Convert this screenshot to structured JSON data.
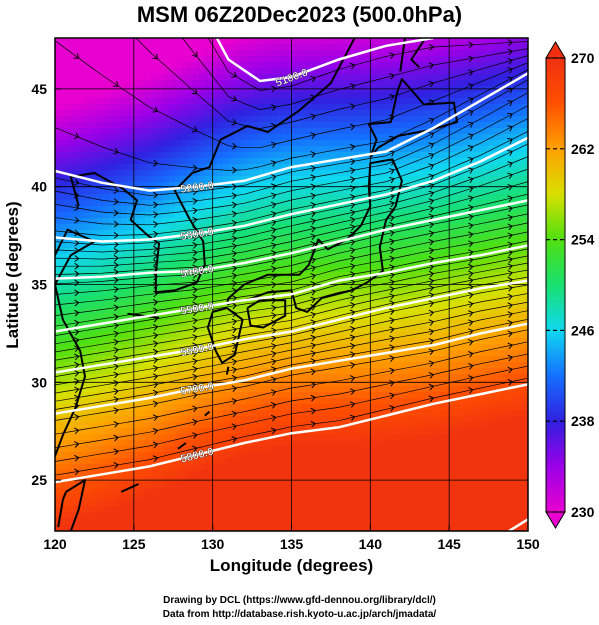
{
  "title": "MSM 06Z20Dec2023 (500.0hPa)",
  "xlabel": "Longitude (degrees)",
  "ylabel": "Latitude  (degrees)",
  "footer": {
    "line1": "Drawing by DCL (https://www.gfd-dennou.org/library/dcl/)",
    "line2": "Data from http://database.rish.kyoto-u.ac.jp/arch/jmadata/"
  },
  "chart_data": {
    "type": "heatmap",
    "x_ticks": [
      "120",
      "125",
      "130",
      "135",
      "140",
      "145",
      "150"
    ],
    "y_ticks": [
      "25",
      "30",
      "35",
      "40",
      "45"
    ],
    "xlim": [
      120,
      150
    ],
    "ylim": [
      22.4,
      47.6
    ],
    "colorbar": {
      "ticks": [
        "230",
        "238",
        "246",
        "254",
        "262",
        "270"
      ],
      "range": [
        230,
        270
      ],
      "colors": [
        "#e800d0",
        "#9c00e8",
        "#3020e0",
        "#1470ff",
        "#10d8f0",
        "#18e070",
        "#50e010",
        "#d8e000",
        "#ffa000",
        "#ff5000",
        "#f03010"
      ]
    },
    "contours": [
      {
        "label": "5100.0",
        "points": [
          [
            130.0,
            48.0
          ],
          [
            131.0,
            46.5
          ],
          [
            133.0,
            45.4
          ],
          [
            135.0,
            45.6
          ],
          [
            138.0,
            46.5
          ],
          [
            141.0,
            47.2
          ],
          [
            144.0,
            47.6
          ]
        ]
      },
      {
        "label": "5200.0",
        "points": [
          [
            120.0,
            40.8
          ],
          [
            123.0,
            40.2
          ],
          [
            126.0,
            39.8
          ],
          [
            129.0,
            40.0
          ],
          [
            132.0,
            40.3
          ],
          [
            135.0,
            41.0
          ],
          [
            138.0,
            41.4
          ],
          [
            141.0,
            41.8
          ],
          [
            144.0,
            43.0
          ],
          [
            147.0,
            44.4
          ],
          [
            150.0,
            45.8
          ]
        ]
      },
      {
        "label": "5300.0",
        "points": [
          [
            120.0,
            37.4
          ],
          [
            123.0,
            37.2
          ],
          [
            126.0,
            37.3
          ],
          [
            129.0,
            37.6
          ],
          [
            132.0,
            38.0
          ],
          [
            135.0,
            38.6
          ],
          [
            138.0,
            39.1
          ],
          [
            141.0,
            39.6
          ],
          [
            144.0,
            40.3
          ],
          [
            147.0,
            41.3
          ],
          [
            150.0,
            42.5
          ]
        ]
      },
      {
        "label": "5400.0",
        "points": [
          [
            120.0,
            35.3
          ],
          [
            123.0,
            35.4
          ],
          [
            126.0,
            35.6
          ],
          [
            129.0,
            35.7
          ],
          [
            132.0,
            36.1
          ],
          [
            135.0,
            36.6
          ],
          [
            138.0,
            37.2
          ],
          [
            141.0,
            37.8
          ],
          [
            144.0,
            38.3
          ],
          [
            147.0,
            38.8
          ],
          [
            150.0,
            39.3
          ]
        ]
      },
      {
        "label": "5500.0",
        "points": [
          [
            120.0,
            32.6
          ],
          [
            123.0,
            33.0
          ],
          [
            126.0,
            33.4
          ],
          [
            129.0,
            33.8
          ],
          [
            132.0,
            34.2
          ],
          [
            135.0,
            34.5
          ],
          [
            138.0,
            35.2
          ],
          [
            141.0,
            35.6
          ],
          [
            144.0,
            36.1
          ],
          [
            147.0,
            36.5
          ],
          [
            150.0,
            37.0
          ]
        ]
      },
      {
        "label": "5600.0",
        "points": [
          [
            120.0,
            30.5
          ],
          [
            123.0,
            30.9
          ],
          [
            126.0,
            31.3
          ],
          [
            129.0,
            31.7
          ],
          [
            132.0,
            32.2
          ],
          [
            135.0,
            32.6
          ],
          [
            138.0,
            33.2
          ],
          [
            141.0,
            33.8
          ],
          [
            144.0,
            34.3
          ],
          [
            147.0,
            34.8
          ],
          [
            150.0,
            35.2
          ]
        ]
      },
      {
        "label": "5700.0",
        "points": [
          [
            120.0,
            28.4
          ],
          [
            123.0,
            28.8
          ],
          [
            126.0,
            29.2
          ],
          [
            129.0,
            29.7
          ],
          [
            132.0,
            30.1
          ],
          [
            135.0,
            30.7
          ],
          [
            138.0,
            31.1
          ],
          [
            141.0,
            31.5
          ],
          [
            144.0,
            31.9
          ],
          [
            147.0,
            32.5
          ],
          [
            150.0,
            33.0
          ]
        ]
      },
      {
        "label": "5800.0",
        "points": [
          [
            120.0,
            24.9
          ],
          [
            123.0,
            25.3
          ],
          [
            126.0,
            25.7
          ],
          [
            129.0,
            26.3
          ],
          [
            132.0,
            26.9
          ],
          [
            135.0,
            27.4
          ],
          [
            138.0,
            27.7
          ],
          [
            141.0,
            28.3
          ],
          [
            144.0,
            28.9
          ],
          [
            147.0,
            29.4
          ],
          [
            150.0,
            29.9
          ]
        ]
      },
      {
        "label": "",
        "points": [
          [
            148.8,
            22.4
          ],
          [
            150.0,
            23.0
          ]
        ]
      }
    ]
  }
}
